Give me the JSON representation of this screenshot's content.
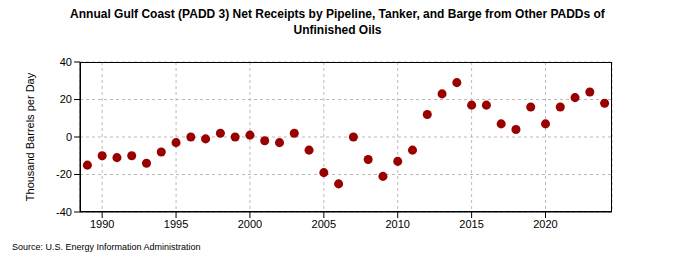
{
  "chart_data": {
    "type": "scatter",
    "title": "Annual Gulf Coast (PADD 3) Net Receipts by Pipeline, Tanker, and Barge from Other PADDs of Unfinished Oils",
    "y_label": "Thousand Barrels per Day",
    "source": "Source: U.S. Energy Information Administration",
    "x": [
      1989,
      1990,
      1991,
      1992,
      1993,
      1994,
      1995,
      1996,
      1997,
      1998,
      1999,
      2000,
      2001,
      2002,
      2003,
      2004,
      2005,
      2006,
      2007,
      2008,
      2009,
      2010,
      2011,
      2012,
      2013,
      2014,
      2015,
      2016,
      2017,
      2018,
      2019,
      2020,
      2021,
      2022,
      2023,
      2024
    ],
    "values": [
      -15,
      -10,
      -11,
      -10,
      -14,
      -8,
      -3,
      0,
      -1,
      2,
      0,
      1,
      -2,
      -3,
      2,
      -7,
      -19,
      -25,
      0,
      -12,
      -21,
      -13,
      -7,
      12,
      23,
      29,
      17,
      17,
      7,
      4,
      16,
      7,
      16,
      21,
      24,
      18
    ],
    "color": "#990000",
    "marker": "circle",
    "xlim": [
      1988.5,
      2024.5
    ],
    "xticks": [
      1990,
      1995,
      2000,
      2005,
      2010,
      2015,
      2020
    ],
    "ylim": [
      -40,
      40
    ],
    "yticks": [
      -40,
      -20,
      0,
      20,
      40
    ],
    "grid": true
  }
}
